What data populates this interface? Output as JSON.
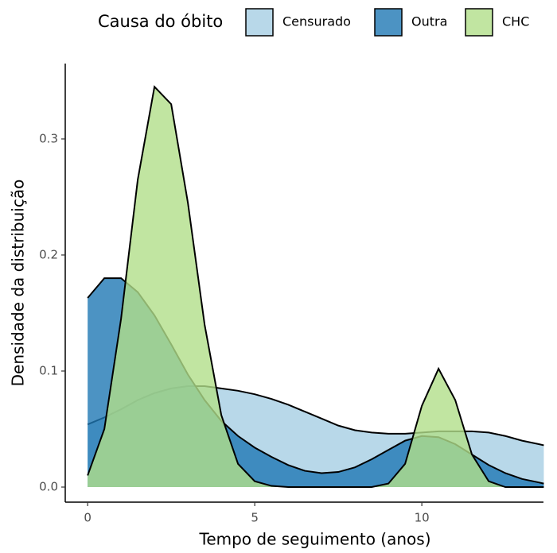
{
  "chart_data": {
    "type": "area",
    "x_label": "Tempo de seguimento (anos)",
    "y_label": "Densidade da distribuição",
    "legend_title": "Causa do óbito",
    "legend_position": "top",
    "x": [
      0,
      0.5,
      1,
      1.5,
      2,
      2.5,
      3,
      3.5,
      4,
      4.5,
      5,
      5.5,
      6,
      6.5,
      7,
      7.5,
      8,
      8.5,
      9,
      9.5,
      10,
      10.5,
      11,
      11.5,
      12,
      12.5,
      13,
      13.5,
      13.65
    ],
    "series": [
      {
        "name": "Censurado",
        "color": "#a6cee3",
        "values": [
          0.054,
          0.06,
          0.067,
          0.075,
          0.081,
          0.085,
          0.087,
          0.087,
          0.085,
          0.083,
          0.08,
          0.076,
          0.071,
          0.065,
          0.059,
          0.053,
          0.049,
          0.047,
          0.046,
          0.046,
          0.047,
          0.048,
          0.048,
          0.048,
          0.047,
          0.044,
          0.04,
          0.037,
          0.036
        ]
      },
      {
        "name": "Outra",
        "color": "#1f78b4",
        "values": [
          0.163,
          0.18,
          0.18,
          0.168,
          0.148,
          0.123,
          0.097,
          0.075,
          0.057,
          0.044,
          0.034,
          0.026,
          0.019,
          0.014,
          0.012,
          0.013,
          0.017,
          0.024,
          0.032,
          0.04,
          0.044,
          0.043,
          0.037,
          0.028,
          0.019,
          0.012,
          0.007,
          0.004,
          0.003
        ]
      },
      {
        "name": "CHC",
        "color": "#b2df8a",
        "values": [
          0.01,
          0.05,
          0.145,
          0.265,
          0.345,
          0.33,
          0.245,
          0.14,
          0.062,
          0.02,
          0.005,
          0.001,
          0,
          0,
          0,
          0,
          0,
          0,
          0.003,
          0.02,
          0.07,
          0.102,
          0.075,
          0.028,
          0.005,
          0,
          0,
          0,
          0
        ]
      }
    ],
    "xlim": [
      -0.67,
      13.64
    ],
    "ylim": [
      -0.013,
      0.365
    ],
    "xticks": [
      0,
      5,
      10
    ],
    "yticks": [
      {
        "value": 0,
        "label": "0.0"
      },
      0.1,
      0.2,
      0.3
    ]
  }
}
